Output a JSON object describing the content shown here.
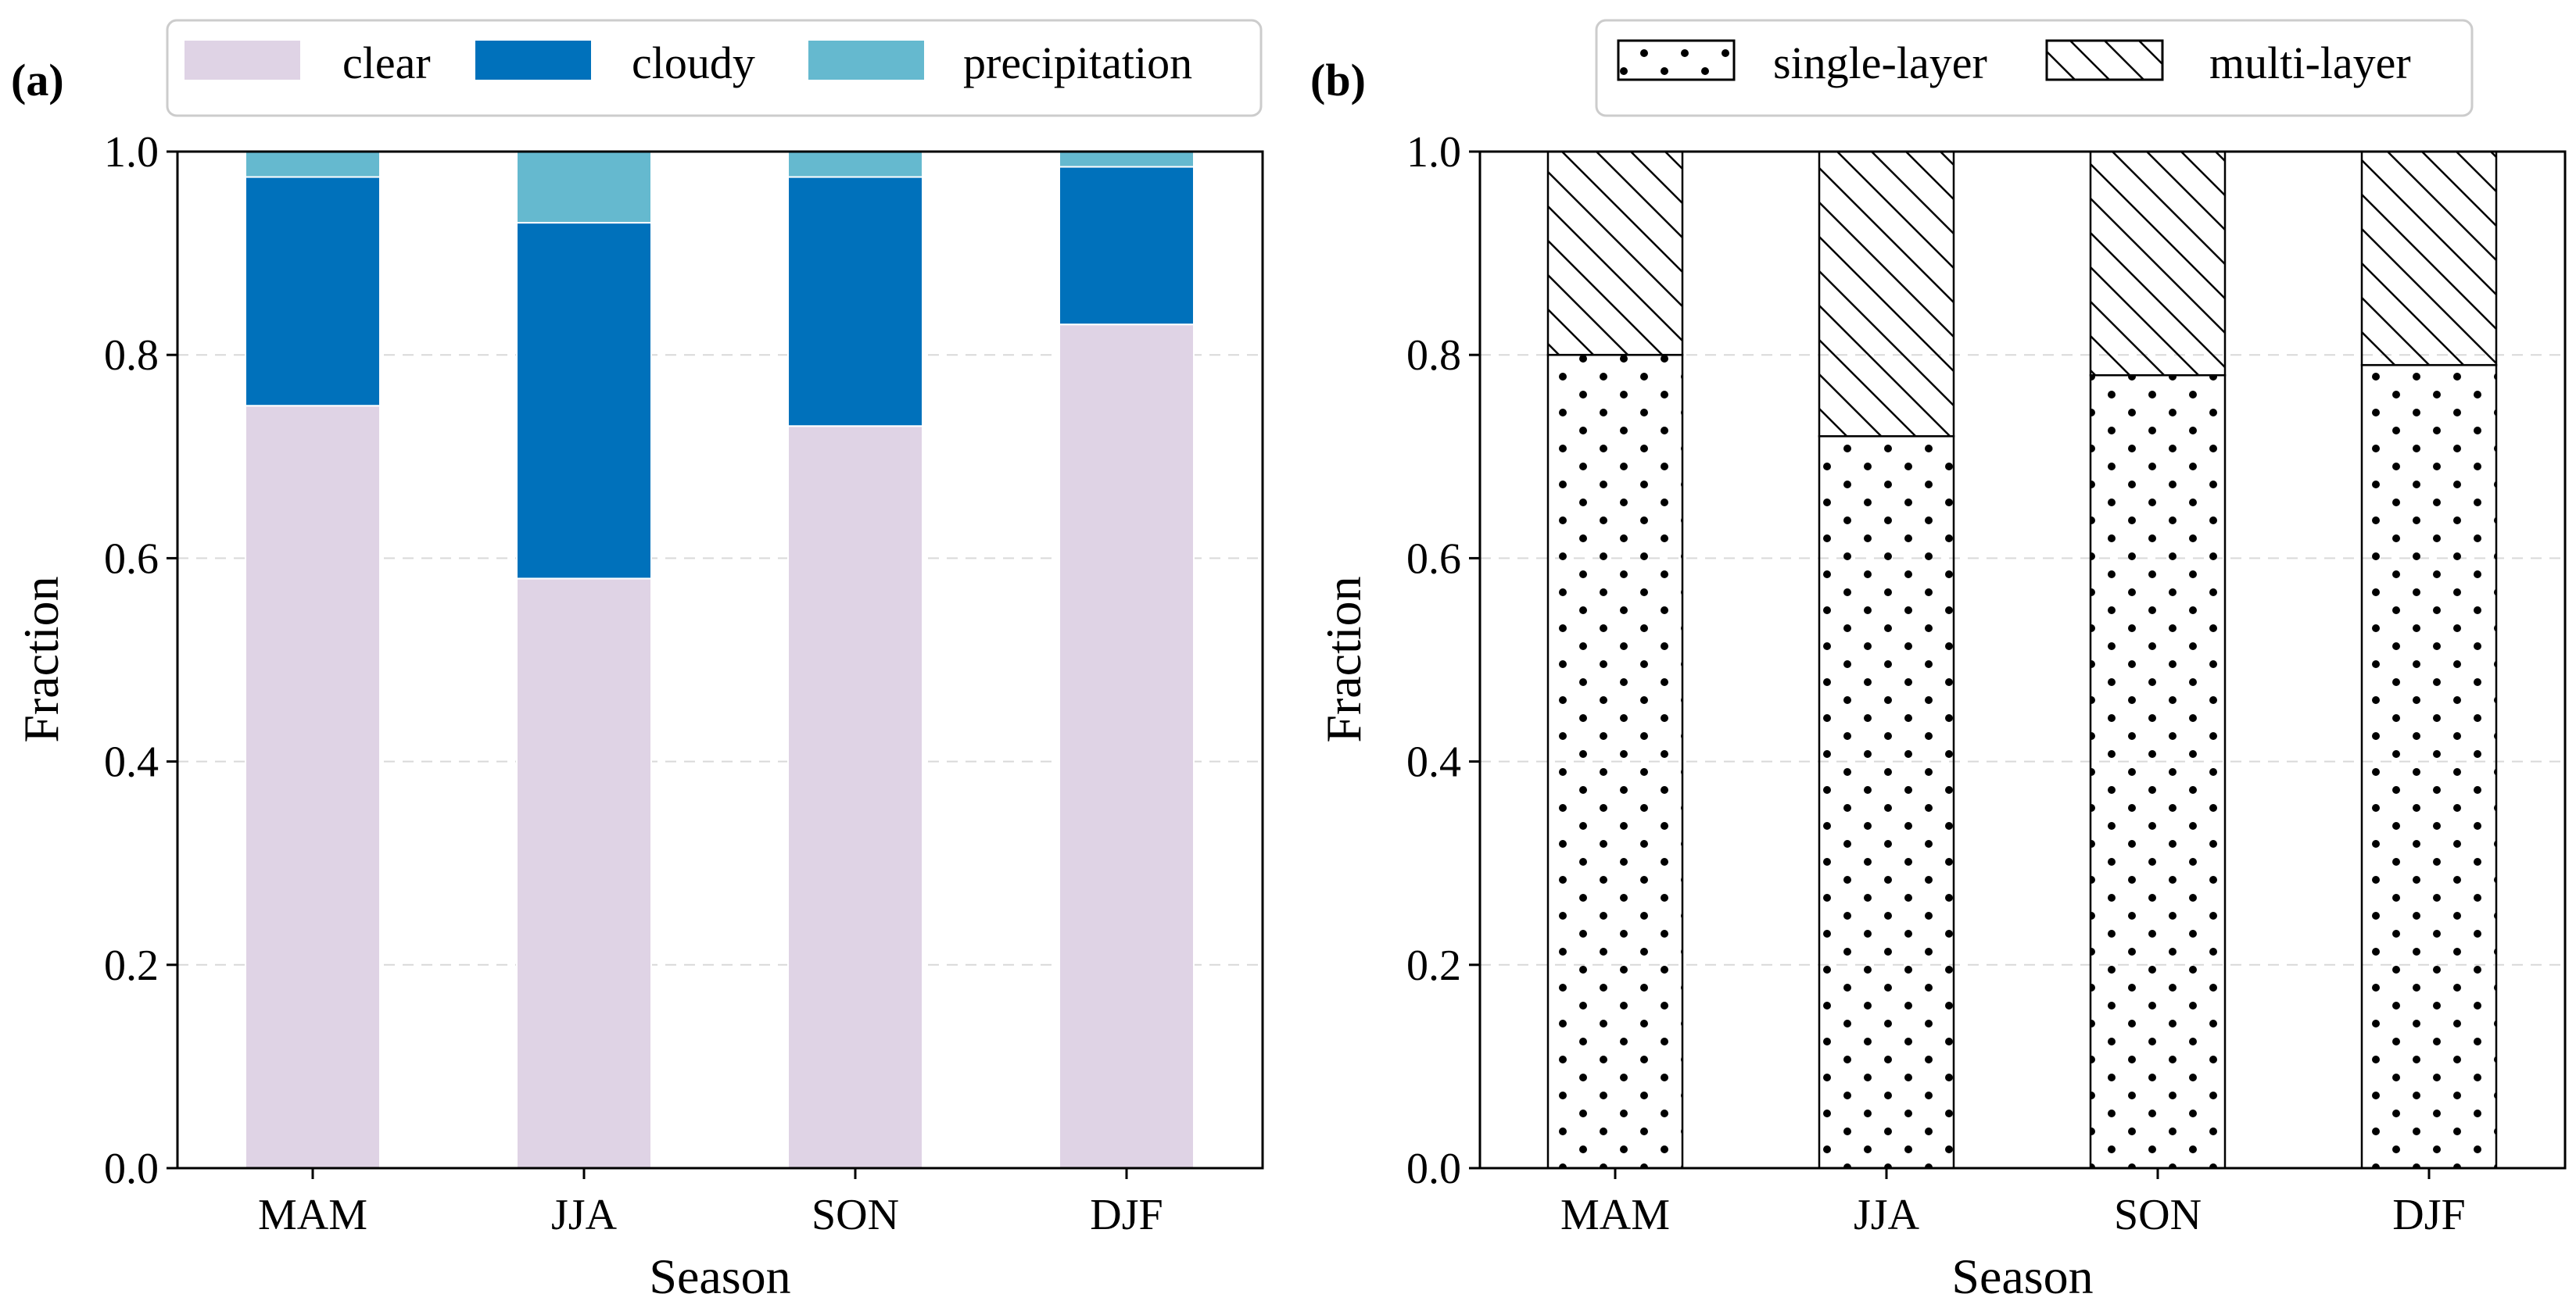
{
  "chart_data": [
    {
      "panel_label": "(a)",
      "type": "bar",
      "stacked": true,
      "categories": [
        "MAM",
        "JJA",
        "SON",
        "DJF"
      ],
      "series": [
        {
          "name": "clear",
          "color": "#dfd3e5",
          "values": [
            0.75,
            0.58,
            0.73,
            0.83
          ]
        },
        {
          "name": "cloudy",
          "color": "#0071bb",
          "values": [
            0.225,
            0.35,
            0.245,
            0.155
          ]
        },
        {
          "name": "precipitation",
          "color": "#65b9cf",
          "values": [
            0.025,
            0.07,
            0.025,
            0.015
          ]
        }
      ],
      "xlabel": "Season",
      "ylabel": "Fraction",
      "ylim": [
        0,
        1.0
      ],
      "yticks": [
        "0.0",
        "0.2",
        "0.4",
        "0.6",
        "0.8",
        "1.0"
      ],
      "grid": true,
      "legend_position": "top"
    },
    {
      "panel_label": "(b)",
      "type": "bar",
      "stacked": true,
      "categories": [
        "MAM",
        "JJA",
        "SON",
        "DJF"
      ],
      "series": [
        {
          "name": "single-layer",
          "pattern": "dots",
          "values": [
            0.8,
            0.72,
            0.78,
            0.79
          ]
        },
        {
          "name": "multi-layer",
          "pattern": "hatch",
          "values": [
            0.2,
            0.28,
            0.22,
            0.21
          ]
        }
      ],
      "xlabel": "Season",
      "ylabel": "Fraction",
      "ylim": [
        0,
        1.0
      ],
      "yticks": [
        "0.0",
        "0.2",
        "0.4",
        "0.6",
        "0.8",
        "1.0"
      ],
      "grid": true,
      "legend_position": "top"
    }
  ]
}
